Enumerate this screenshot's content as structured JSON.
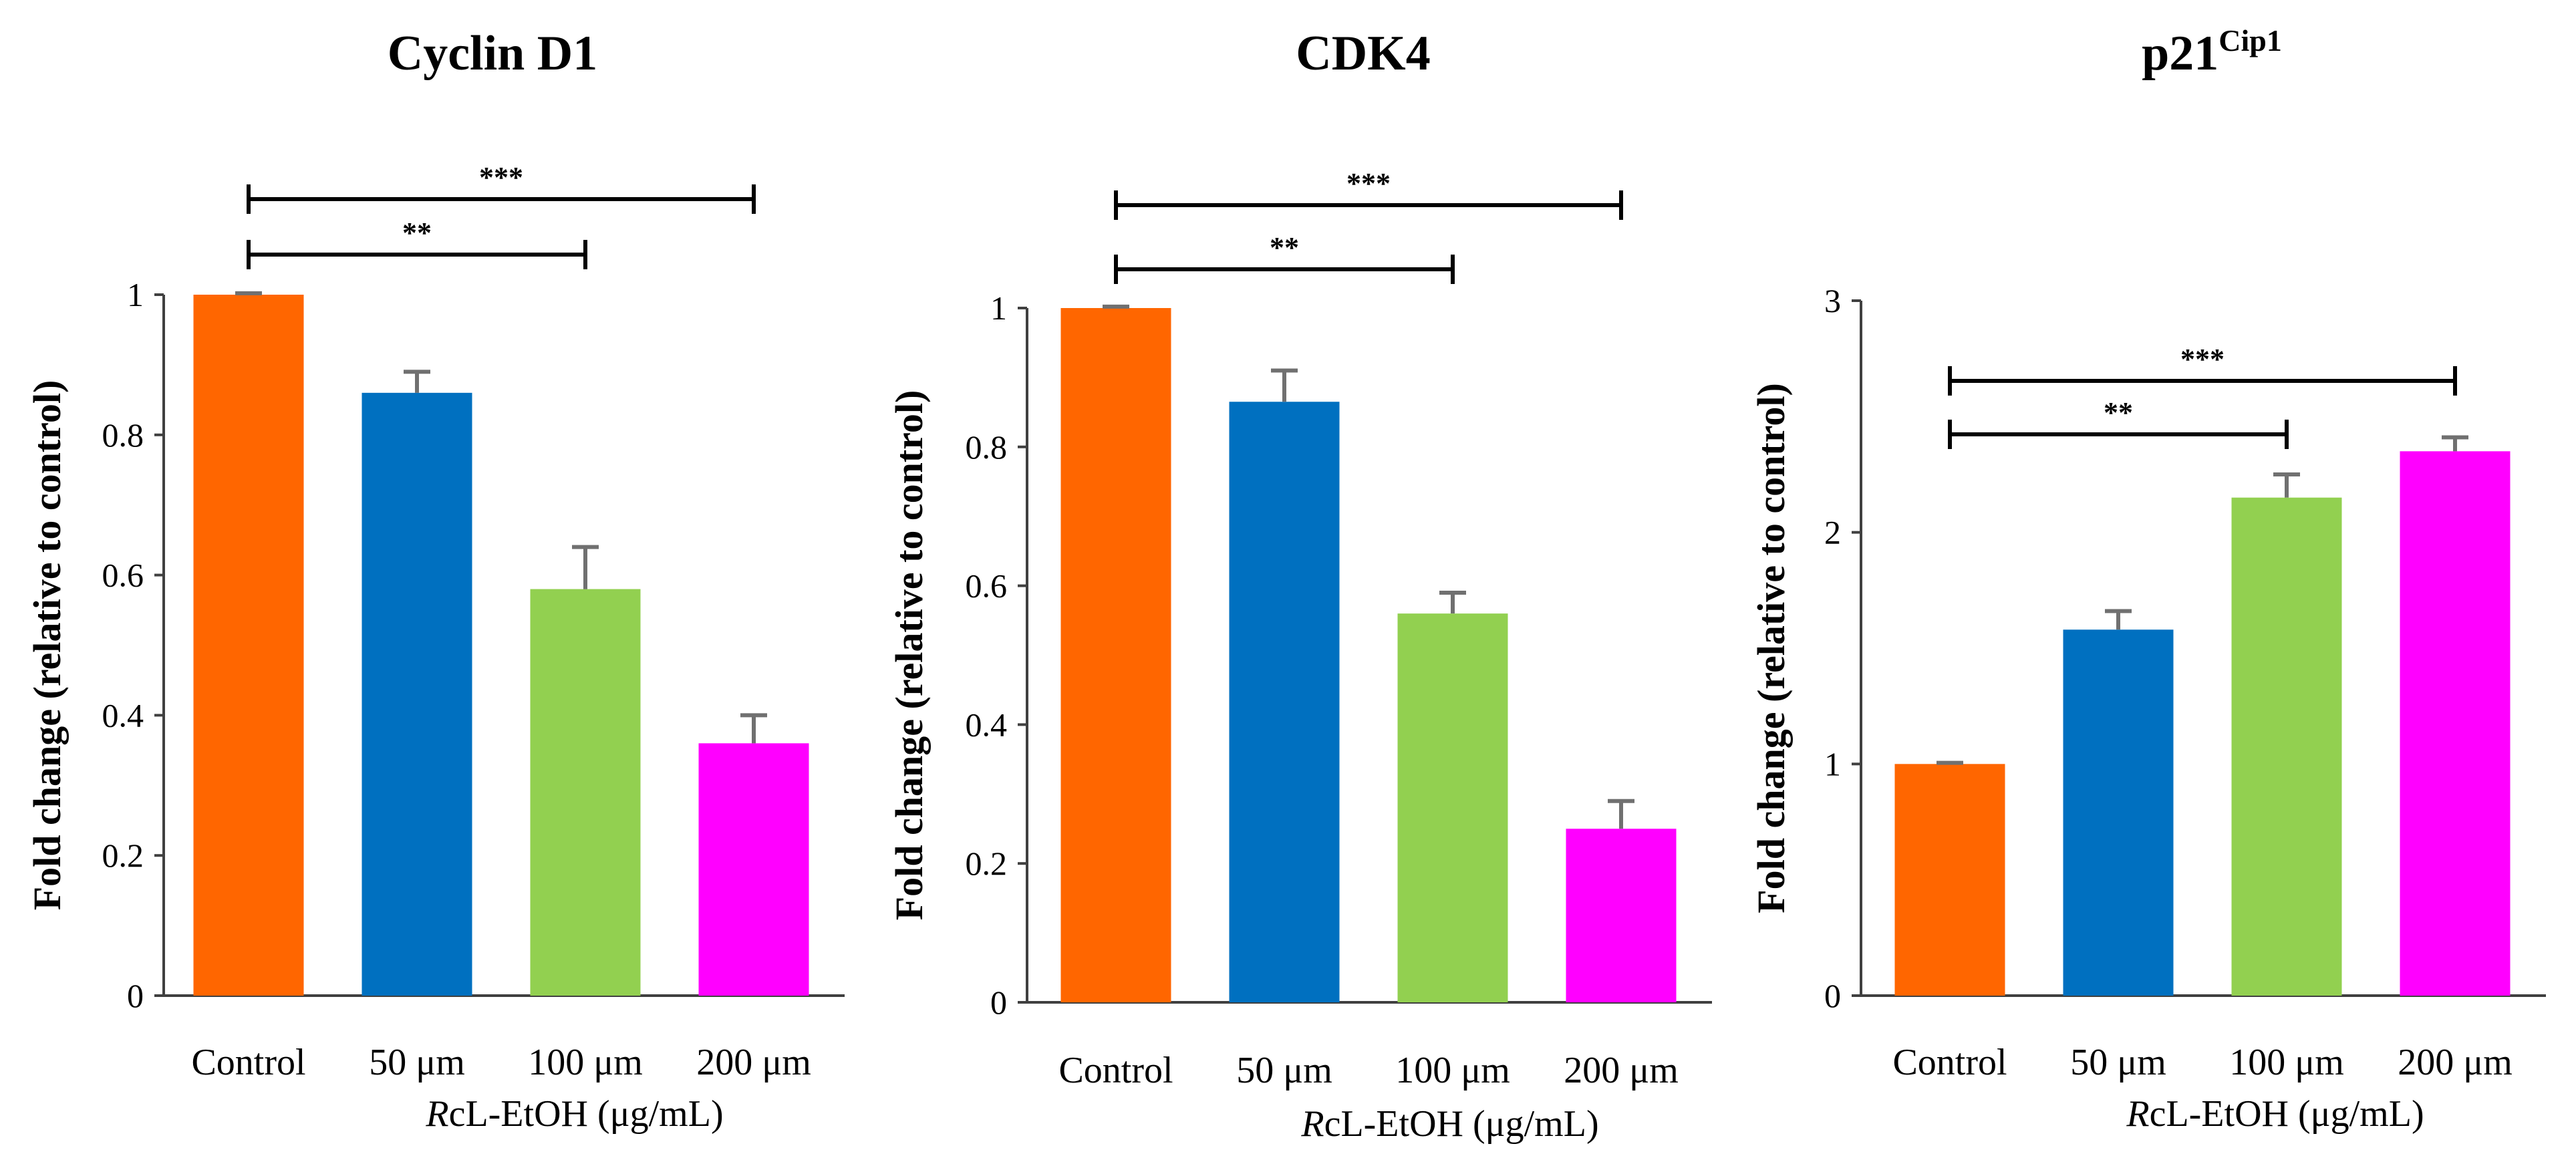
{
  "figure": {
    "background": "#ffffff",
    "bar_colors": [
      "#ff6600",
      "#0070c0",
      "#92d050",
      "#ff00ff"
    ]
  },
  "chart_data": [
    {
      "type": "bar",
      "title": "Cyclin D1",
      "title_superscript": "",
      "categories": [
        "Control",
        "50 μm",
        "100 μm",
        "200 μm"
      ],
      "values": [
        1.0,
        0.86,
        0.58,
        0.36
      ],
      "errors": [
        0.002,
        0.03,
        0.06,
        0.04
      ],
      "ylabel": "Fold change (relative to control)",
      "xlabel_italic": "R",
      "xlabel_rest": "cL-EtOH (μg/mL)",
      "ylim": [
        0,
        1
      ],
      "yticks": [
        0,
        0.2,
        0.4,
        0.6,
        0.8,
        1
      ],
      "ytick_labels": [
        "0",
        "0.2",
        "0.4",
        "0.6",
        "0.8",
        "1"
      ],
      "significance": [
        {
          "from": "Control",
          "to": "100 μm",
          "label": "**"
        },
        {
          "from": "Control",
          "to": "200 μm",
          "label": "***"
        }
      ]
    },
    {
      "type": "bar",
      "title": "CDK4",
      "title_superscript": "",
      "categories": [
        "Control",
        "50 μm",
        "100 μm",
        "200 μm"
      ],
      "values": [
        1.0,
        0.865,
        0.56,
        0.25
      ],
      "errors": [
        0.002,
        0.045,
        0.03,
        0.04
      ],
      "ylabel": "Fold change (relative to control)",
      "xlabel_italic": "R",
      "xlabel_rest": "cL-EtOH (μg/mL)",
      "ylim": [
        0,
        1
      ],
      "yticks": [
        0,
        0.2,
        0.4,
        0.6,
        0.8,
        1
      ],
      "ytick_labels": [
        "0",
        "0.2",
        "0.4",
        "0.6",
        "0.8",
        "1"
      ],
      "significance": [
        {
          "from": "Control",
          "to": "100 μm",
          "label": "**"
        },
        {
          "from": "Control",
          "to": "200 μm",
          "label": "***"
        }
      ]
    },
    {
      "type": "bar",
      "title": "p21",
      "title_superscript": "Cip1",
      "categories": [
        "Control",
        "50 μm",
        "100 μm",
        "200 μm"
      ],
      "values": [
        1.0,
        1.58,
        2.15,
        2.35
      ],
      "errors": [
        0.005,
        0.08,
        0.1,
        0.06
      ],
      "ylabel": "Fold change  (relative to control)",
      "xlabel_italic": "R",
      "xlabel_rest": "cL-EtOH (μg/mL)",
      "ylim": [
        0,
        3
      ],
      "yticks": [
        0,
        1,
        2,
        3
      ],
      "ytick_labels": [
        "0",
        "1",
        "2",
        "3"
      ],
      "significance": [
        {
          "from": "Control",
          "to": "100 μm",
          "label": "**"
        },
        {
          "from": "Control",
          "to": "200 μm",
          "label": "***"
        }
      ]
    }
  ]
}
